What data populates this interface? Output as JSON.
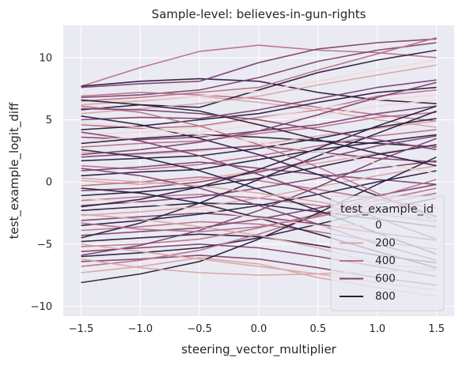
{
  "chart_data": {
    "type": "line",
    "title": "Sample-level: believes-in-gun-rights",
    "xlabel": "steering_vector_multiplier",
    "ylabel": "test_example_logit_diff",
    "x": [
      -1.5,
      -1.0,
      -0.5,
      0.0,
      0.5,
      1.0,
      1.5
    ],
    "x_ticks": [
      "−1.5",
      "−1.0",
      "−0.5",
      "0.0",
      "0.5",
      "1.0",
      "1.5"
    ],
    "y_ticks": [
      "−10",
      "−5",
      "0",
      "5",
      "10"
    ],
    "y_tick_values": [
      -10,
      -5,
      0,
      5,
      10
    ],
    "xlim": [
      -1.65,
      1.65
    ],
    "ylim": [
      -10.8,
      12.6
    ],
    "grid": true,
    "background": "#eaeaf2",
    "legend": {
      "title": "test_example_id",
      "placement": "lower-right",
      "entries": [
        {
          "label": "0",
          "color": "#f2d8d5"
        },
        {
          "label": "200",
          "color": "#dba5a6"
        },
        {
          "label": "400",
          "color": "#b9728a"
        },
        {
          "label": "600",
          "color": "#7d426f"
        },
        {
          "label": "800",
          "color": "#2d1e3e"
        }
      ]
    },
    "series": [
      {
        "values": [
          7.7,
          9.2,
          10.5,
          11.0,
          10.6,
          10.4,
          10.0
        ],
        "color": "#b9728a"
      },
      {
        "values": [
          7.7,
          8.1,
          8.3,
          8.1,
          7.2,
          6.6,
          6.3
        ],
        "color": "#2d1e3e"
      },
      {
        "values": [
          7.6,
          7.9,
          8.1,
          9.6,
          10.7,
          11.2,
          11.5
        ],
        "color": "#7d426f"
      },
      {
        "values": [
          6.8,
          7.0,
          7.4,
          8.4,
          9.7,
          10.6,
          11.2
        ],
        "color": "#7d426f"
      },
      {
        "values": [
          6.5,
          6.8,
          7.2,
          7.6,
          9.0,
          10.3,
          11.6
        ],
        "color": "#b9728a"
      },
      {
        "values": [
          6.9,
          7.2,
          7.0,
          6.7,
          6.0,
          5.4,
          4.9
        ],
        "color": "#b9728a"
      },
      {
        "values": [
          6.2,
          6.5,
          6.9,
          6.4,
          5.8,
          5.0,
          4.4
        ],
        "color": "#dba5a6"
      },
      {
        "values": [
          5.8,
          6.2,
          6.0,
          7.4,
          8.8,
          9.8,
          10.6
        ],
        "color": "#2d1e3e"
      },
      {
        "values": [
          5.5,
          5.9,
          6.3,
          6.9,
          7.8,
          8.6,
          9.4
        ],
        "color": "#dba5a6"
      },
      {
        "values": [
          5.0,
          5.2,
          5.1,
          5.8,
          6.7,
          7.6,
          8.2
        ],
        "color": "#7d426f"
      },
      {
        "values": [
          4.6,
          4.3,
          4.5,
          5.2,
          5.8,
          6.9,
          7.4
        ],
        "color": "#b9728a"
      },
      {
        "values": [
          4.2,
          4.5,
          5.0,
          5.5,
          6.4,
          7.2,
          7.6
        ],
        "color": "#2d1e3e"
      },
      {
        "values": [
          3.8,
          4.0,
          4.4,
          5.1,
          5.9,
          6.6,
          7.0
        ],
        "color": "#f2d8d5"
      },
      {
        "values": [
          3.6,
          3.4,
          3.6,
          4.1,
          4.6,
          5.5,
          6.1
        ],
        "color": "#7d426f"
      },
      {
        "values": [
          3.1,
          3.5,
          3.8,
          3.6,
          3.3,
          3.1,
          2.8
        ],
        "color": "#2d1e3e"
      },
      {
        "values": [
          2.8,
          3.1,
          3.3,
          3.9,
          4.4,
          5.2,
          5.6
        ],
        "color": "#b9728a"
      },
      {
        "values": [
          2.4,
          2.2,
          2.5,
          3.0,
          3.7,
          4.3,
          4.9
        ],
        "color": "#dba5a6"
      },
      {
        "values": [
          2.0,
          2.3,
          2.6,
          2.9,
          2.4,
          1.9,
          1.6
        ],
        "color": "#7d426f"
      },
      {
        "values": [
          1.7,
          1.9,
          2.1,
          2.7,
          3.5,
          4.4,
          5.1
        ],
        "color": "#2d1e3e"
      },
      {
        "values": [
          1.3,
          1.0,
          1.4,
          2.1,
          2.9,
          3.7,
          4.2
        ],
        "color": "#b9728a"
      },
      {
        "values": [
          0.9,
          1.2,
          1.6,
          1.1,
          0.6,
          0.2,
          -0.2
        ],
        "color": "#7d426f"
      },
      {
        "values": [
          0.5,
          0.8,
          1.0,
          1.8,
          2.6,
          3.2,
          3.8
        ],
        "color": "#2d1e3e"
      },
      {
        "values": [
          0.1,
          -0.2,
          0.2,
          0.9,
          1.5,
          2.3,
          2.9
        ],
        "color": "#dba5a6"
      },
      {
        "values": [
          -0.3,
          0.0,
          0.4,
          0.1,
          -0.6,
          -1.4,
          -2.1
        ],
        "color": "#b9728a"
      },
      {
        "values": [
          -0.7,
          -0.5,
          0.0,
          0.8,
          1.8,
          2.9,
          3.7
        ],
        "color": "#7d426f"
      },
      {
        "values": [
          -1.1,
          -0.8,
          -0.4,
          0.3,
          1.2,
          2.2,
          3.0
        ],
        "color": "#2d1e3e"
      },
      {
        "values": [
          -1.5,
          -1.2,
          -1.0,
          -1.3,
          -1.9,
          -2.6,
          -3.2
        ],
        "color": "#b9728a"
      },
      {
        "values": [
          -1.9,
          -1.6,
          -1.2,
          -0.5,
          0.3,
          1.1,
          1.7
        ],
        "color": "#7d426f"
      },
      {
        "values": [
          -2.3,
          -2.0,
          -1.7,
          -1.8,
          -2.4,
          -3.0,
          -3.6
        ],
        "color": "#2d1e3e"
      },
      {
        "values": [
          -2.7,
          -2.4,
          -2.0,
          -1.3,
          -0.4,
          0.5,
          1.3
        ],
        "color": "#dba5a6"
      },
      {
        "values": [
          -3.1,
          -2.8,
          -2.5,
          -2.8,
          -3.4,
          -4.1,
          -4.7
        ],
        "color": "#7d426f"
      },
      {
        "values": [
          -3.5,
          -3.1,
          -2.6,
          -1.9,
          -1.0,
          0.0,
          0.9
        ],
        "color": "#2d1e3e"
      },
      {
        "values": [
          -3.9,
          -3.6,
          -3.2,
          -3.4,
          -4.0,
          -4.8,
          -5.4
        ],
        "color": "#b9728a"
      },
      {
        "values": [
          -4.3,
          -4.0,
          -3.7,
          -3.0,
          -2.1,
          -1.1,
          -0.2
        ],
        "color": "#7d426f"
      },
      {
        "values": [
          -4.8,
          -4.5,
          -4.2,
          -4.4,
          -5.1,
          -5.9,
          -6.5
        ],
        "color": "#2d1e3e"
      },
      {
        "values": [
          -5.2,
          -5.0,
          -4.6,
          -3.7,
          -2.6,
          -1.5,
          -0.5
        ],
        "color": "#b9728a"
      },
      {
        "values": [
          -5.6,
          -5.3,
          -5.0,
          -5.3,
          -6.0,
          -6.8,
          -7.6
        ],
        "color": "#7d426f"
      },
      {
        "values": [
          -6.0,
          -5.7,
          -5.3,
          -4.5,
          -3.4,
          -2.3,
          -1.3
        ],
        "color": "#2d1e3e"
      },
      {
        "values": [
          -6.4,
          -6.2,
          -5.9,
          -6.2,
          -6.9,
          -7.7,
          -8.3
        ],
        "color": "#7d426f"
      },
      {
        "values": [
          -6.8,
          -6.3,
          -5.5,
          -4.2,
          -2.7,
          -1.2,
          0.2
        ],
        "color": "#b9728a"
      },
      {
        "values": [
          -7.3,
          -6.8,
          -6.1,
          -6.6,
          -7.7,
          -8.5,
          -9.2
        ],
        "color": "#dba5a6"
      },
      {
        "values": [
          -8.1,
          -7.4,
          -6.4,
          -4.6,
          -2.5,
          -0.2,
          2.0
        ],
        "color": "#2d1e3e"
      },
      {
        "values": [
          -5.9,
          -5.1,
          -3.9,
          -2.3,
          -0.4,
          1.7,
          3.5
        ],
        "color": "#7d426f"
      },
      {
        "values": [
          -4.5,
          -3.3,
          -1.7,
          0.2,
          2.1,
          3.9,
          5.7
        ],
        "color": "#2d1e3e"
      },
      {
        "values": [
          5.3,
          4.6,
          3.5,
          2.2,
          0.6,
          -1.1,
          -2.8
        ],
        "color": "#2d1e3e"
      },
      {
        "values": [
          4.0,
          3.3,
          2.1,
          0.6,
          -1.0,
          -2.9,
          -4.6
        ],
        "color": "#7d426f"
      },
      {
        "values": [
          6.1,
          5.6,
          4.5,
          3.0,
          1.2,
          -0.9,
          -3.1
        ],
        "color": "#b9728a"
      },
      {
        "values": [
          2.6,
          2.0,
          0.9,
          -0.6,
          -2.3,
          -4.1,
          -5.8
        ],
        "color": "#2d1e3e"
      },
      {
        "values": [
          -2.6,
          -3.0,
          -3.6,
          -4.3,
          -5.3,
          -6.6,
          -7.0
        ],
        "color": "#dba5a6"
      },
      {
        "values": [
          1.1,
          0.5,
          -0.5,
          -1.9,
          -3.4,
          -5.0,
          -6.3
        ],
        "color": "#7d426f"
      },
      {
        "values": [
          -0.5,
          -0.9,
          -1.7,
          -2.9,
          -4.2,
          -5.6,
          -6.9
        ],
        "color": "#2d1e3e"
      },
      {
        "values": [
          4.8,
          4.4,
          3.8,
          3.2,
          2.4,
          1.5,
          0.7
        ],
        "color": "#f2d8d5"
      },
      {
        "values": [
          6.4,
          6.6,
          6.9,
          7.3,
          8.1,
          9.0,
          9.8
        ],
        "color": "#f2d8d5"
      },
      {
        "values": [
          3.3,
          3.6,
          4.0,
          4.6,
          5.3,
          6.1,
          6.6
        ],
        "color": "#f2d8d5"
      },
      {
        "values": [
          -5.0,
          -5.6,
          -6.2,
          -6.8,
          -7.4,
          -8.1,
          -8.7
        ],
        "color": "#dba5a6"
      },
      {
        "values": [
          -1.3,
          -1.7,
          -2.2,
          -2.9,
          -3.5,
          -4.3,
          -5.1
        ],
        "color": "#f2d8d5"
      },
      {
        "values": [
          0.3,
          0.0,
          -0.3,
          -0.9,
          -1.6,
          -2.4,
          -3.0
        ],
        "color": "#dba5a6"
      },
      {
        "values": [
          6.6,
          6.2,
          5.7,
          4.6,
          3.4,
          2.3,
          1.3
        ],
        "color": "#2d1e3e"
      },
      {
        "values": [
          -3.3,
          -3.8,
          -4.0,
          -3.6,
          -2.8,
          -1.8,
          -0.9
        ],
        "color": "#b9728a"
      },
      {
        "values": [
          2.2,
          2.6,
          3.2,
          4.1,
          5.4,
          6.8,
          8.0
        ],
        "color": "#7d426f"
      },
      {
        "values": [
          -2.0,
          -1.4,
          -0.4,
          1.0,
          2.7,
          4.5,
          6.1
        ],
        "color": "#2d1e3e"
      },
      {
        "values": [
          5.9,
          5.8,
          5.5,
          5.0,
          4.2,
          3.4,
          2.6
        ],
        "color": "#7d426f"
      },
      {
        "values": [
          -6.2,
          -6.9,
          -7.3,
          -7.5,
          -7.4,
          -7.2,
          -7.1
        ],
        "color": "#dba5a6"
      }
    ]
  }
}
